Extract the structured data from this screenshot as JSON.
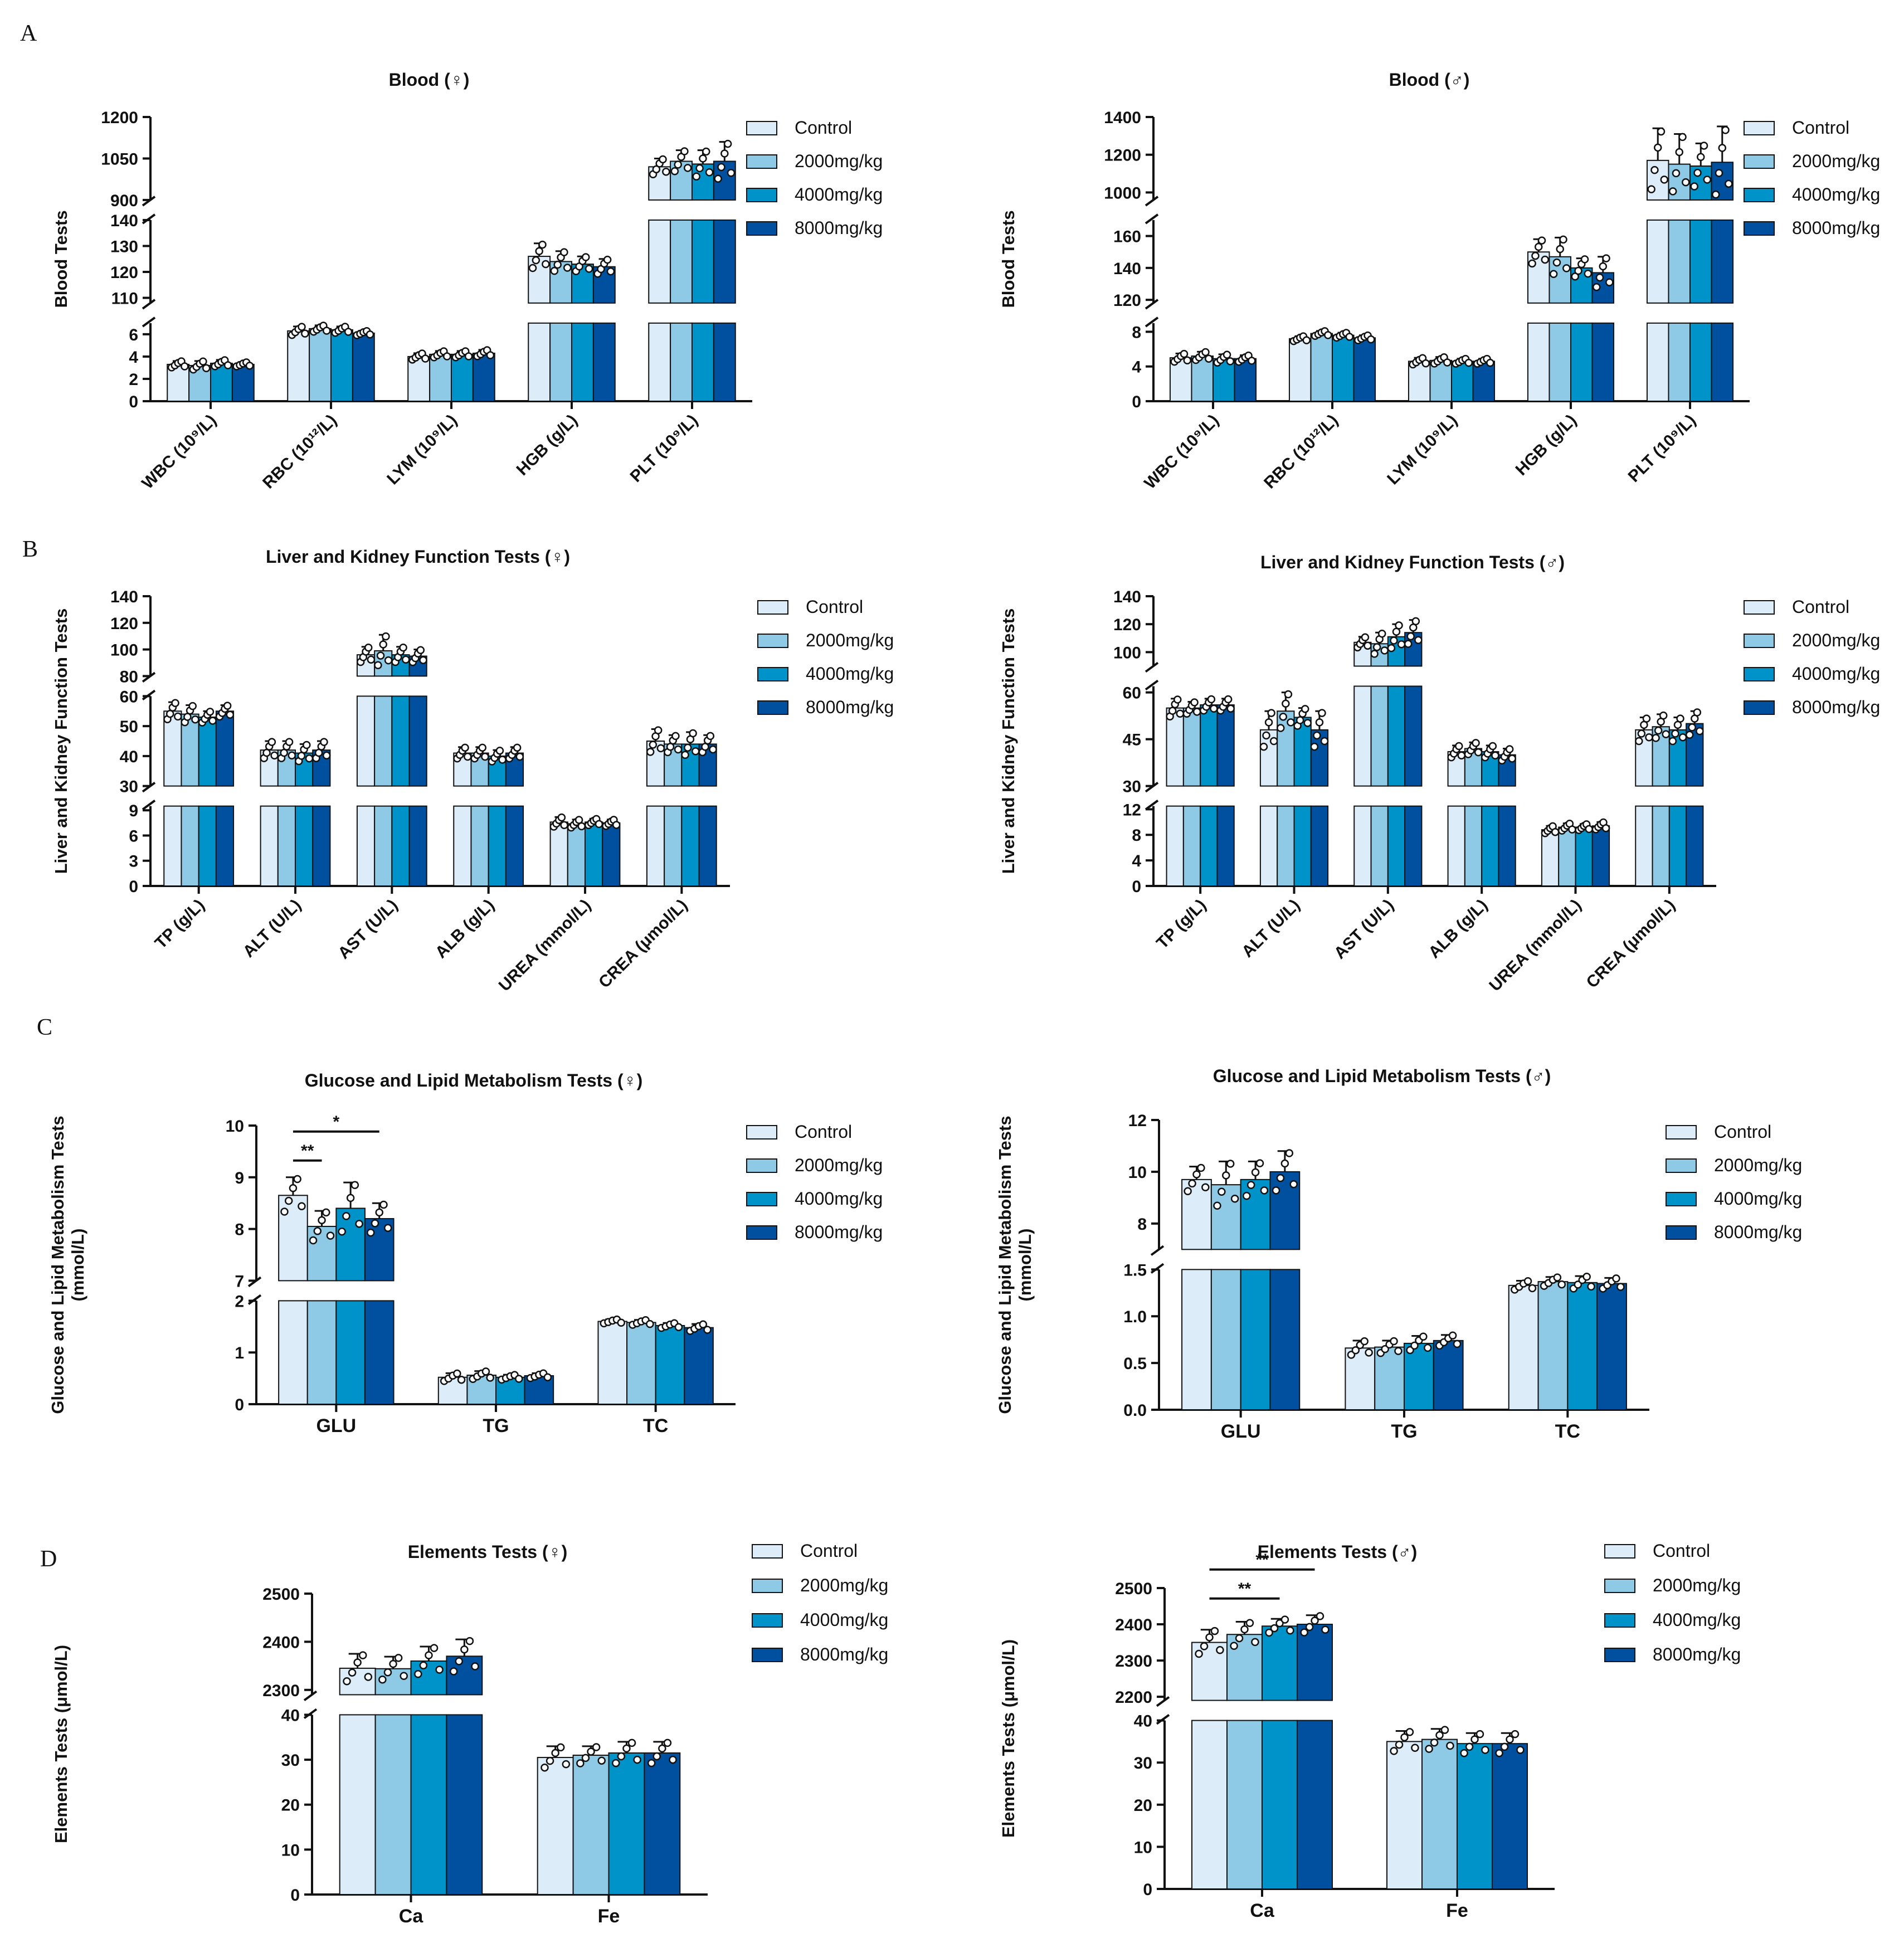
{
  "panel_letters": [
    "A",
    "B",
    "C",
    "D"
  ],
  "legend_items": [
    "Control",
    "2000mg/kg",
    "4000mg/kg",
    "8000mg/kg"
  ],
  "colors": {
    "series": [
      "#dcecf8",
      "#8ecae6",
      "#0093c9",
      "#0050a0"
    ],
    "axis": "#111111"
  },
  "chart_data": [
    {
      "type": "bar",
      "title": "Blood (♀)",
      "ylabel": "Blood Tests",
      "xlabel": "",
      "categories": [
        "WBC (10⁹/L)",
        "RBC (10¹²/L)",
        "LYM (10⁹/L)",
        "HGB (g/L)",
        "PLT (10⁹/L)"
      ],
      "axis_segments": [
        {
          "ylim": [
            0,
            7
          ],
          "ticks": [
            0,
            2,
            4,
            6
          ]
        },
        {
          "ylim": [
            108,
            140
          ],
          "ticks": [
            110,
            120,
            130,
            140
          ]
        },
        {
          "ylim": [
            900,
            1200
          ],
          "ticks": [
            900,
            1050,
            1200
          ]
        }
      ],
      "series": [
        {
          "name": "Control",
          "values": [
            3.3,
            6.3,
            4.0,
            126,
            1020
          ],
          "errors": [
            0.3,
            0.4,
            0.3,
            5,
            30
          ]
        },
        {
          "name": "2000mg/kg",
          "values": [
            3.2,
            6.5,
            4.2,
            124,
            1040
          ],
          "errors": [
            0.4,
            0.3,
            0.3,
            4,
            40
          ]
        },
        {
          "name": "4000mg/kg",
          "values": [
            3.4,
            6.4,
            4.2,
            123,
            1030
          ],
          "errors": [
            0.3,
            0.3,
            0.3,
            3,
            50
          ]
        },
        {
          "name": "8000mg/kg",
          "values": [
            3.3,
            6.1,
            4.3,
            122,
            1040
          ],
          "errors": [
            0.2,
            0.2,
            0.3,
            3,
            70
          ]
        }
      ]
    },
    {
      "type": "bar",
      "title": "Blood (♂)",
      "ylabel": "Blood Tests",
      "xlabel": "",
      "categories": [
        "WBC (10⁹/L)",
        "RBC (10¹²/L)",
        "LYM (10⁹/L)",
        "HGB (g/L)",
        "PLT (10⁹/L)"
      ],
      "axis_segments": [
        {
          "ylim": [
            0,
            9
          ],
          "ticks": [
            0,
            4,
            8
          ]
        },
        {
          "ylim": [
            118,
            170
          ],
          "ticks": [
            120,
            140,
            160
          ]
        },
        {
          "ylim": [
            960,
            1400
          ],
          "ticks": [
            1000,
            1200,
            1400
          ]
        }
      ],
      "series": [
        {
          "name": "Control",
          "values": [
            5.0,
            7.2,
            4.6,
            150,
            1170
          ],
          "errors": [
            0.5,
            0.3,
            0.4,
            8,
            170
          ]
        },
        {
          "name": "2000mg/kg",
          "values": [
            5.2,
            7.8,
            4.7,
            147,
            1150
          ],
          "errors": [
            0.5,
            0.3,
            0.4,
            12,
            160
          ]
        },
        {
          "name": "4000mg/kg",
          "values": [
            4.9,
            7.6,
            4.6,
            140,
            1140
          ],
          "errors": [
            0.5,
            0.3,
            0.3,
            6,
            120
          ]
        },
        {
          "name": "8000mg/kg",
          "values": [
            4.9,
            7.3,
            4.6,
            137,
            1160
          ],
          "errors": [
            0.4,
            0.3,
            0.3,
            10,
            190
          ]
        }
      ]
    },
    {
      "type": "bar",
      "title": "Liver and Kidney Function Tests (♀)",
      "ylabel": "Liver and Kidney Function Tests",
      "xlabel": "",
      "categories": [
        "TP (g/L)",
        "ALT (U/L)",
        "AST (U/L)",
        "ALB (g/L)",
        "UREA (mmol/L)",
        "CREA (μmol/L)"
      ],
      "axis_segments": [
        {
          "ylim": [
            0,
            9.5
          ],
          "ticks": [
            0,
            3,
            6,
            9
          ]
        },
        {
          "ylim": [
            30,
            60
          ],
          "ticks": [
            30,
            40,
            50,
            60
          ]
        },
        {
          "ylim": [
            80,
            140
          ],
          "ticks": [
            80,
            100,
            120,
            140
          ]
        }
      ],
      "series": [
        {
          "name": "Control",
          "values": [
            55,
            42,
            96,
            41,
            7.6,
            45
          ],
          "errors": [
            3,
            3,
            6,
            2,
            0.6,
            4
          ]
        },
        {
          "name": "2000mg/kg",
          "values": [
            54,
            42,
            99,
            41,
            7.4,
            44
          ],
          "errors": [
            3,
            3,
            12,
            2,
            0.5,
            3
          ]
        },
        {
          "name": "4000mg/kg",
          "values": [
            53,
            41,
            96,
            40,
            7.6,
            44
          ],
          "errors": [
            2,
            3,
            6,
            2,
            0.4,
            4
          ]
        },
        {
          "name": "8000mg/kg",
          "values": [
            55,
            42,
            95,
            41,
            7.5,
            44
          ],
          "errors": [
            2,
            3,
            5,
            2,
            0.4,
            3
          ]
        }
      ]
    },
    {
      "type": "bar",
      "title": "Liver and Kidney Function Tests (♂)",
      "ylabel": "Liver and Kidney Function Tests",
      "xlabel": "",
      "categories": [
        "TP (g/L)",
        "ALT (U/L)",
        "AST (U/L)",
        "ALB (g/L)",
        "UREA (mmol/L)",
        "CREA (μmol/L)"
      ],
      "axis_segments": [
        {
          "ylim": [
            0,
            12.5
          ],
          "ticks": [
            0,
            4,
            8,
            12
          ]
        },
        {
          "ylim": [
            30,
            62
          ],
          "ticks": [
            30,
            45,
            60
          ]
        },
        {
          "ylim": [
            90,
            140
          ],
          "ticks": [
            100,
            120,
            140
          ]
        }
      ],
      "series": [
        {
          "name": "Control",
          "values": [
            55,
            48,
            107,
            41,
            8.8,
            48
          ],
          "errors": [
            3,
            6,
            4,
            2,
            0.6,
            4
          ]
        },
        {
          "name": "2000mg/kg",
          "values": [
            55,
            54,
            106,
            42,
            9.2,
            49
          ],
          "errors": [
            2,
            6,
            8,
            2,
            0.6,
            4
          ]
        },
        {
          "name": "4000mg/kg",
          "values": [
            56,
            52,
            111,
            41,
            9.2,
            48
          ],
          "errors": [
            2,
            3,
            9,
            2,
            0.5,
            4
          ]
        },
        {
          "name": "8000mg/kg",
          "values": [
            56,
            48,
            114,
            40,
            9.4,
            50
          ],
          "errors": [
            2,
            6,
            9,
            2,
            0.6,
            4
          ]
        }
      ]
    },
    {
      "type": "bar",
      "title": "Glucose and Lipid Metabolism Tests (♀)",
      "ylabel": "Glucose and Lipid Metabolism Tests (mmol/L)",
      "xlabel": "",
      "categories": [
        "GLU",
        "TG",
        "TC"
      ],
      "axis_segments": [
        {
          "ylim": [
            0,
            2
          ],
          "ticks": [
            0,
            1,
            2
          ]
        },
        {
          "ylim": [
            7,
            10
          ],
          "ticks": [
            7,
            8,
            9,
            10
          ]
        }
      ],
      "series": [
        {
          "name": "Control",
          "values": [
            8.65,
            0.52,
            1.6
          ],
          "errors": [
            0.35,
            0.08,
            0.04
          ]
        },
        {
          "name": "2000mg/kg",
          "values": [
            8.05,
            0.56,
            1.58
          ],
          "errors": [
            0.3,
            0.08,
            0.05
          ]
        },
        {
          "name": "4000mg/kg",
          "values": [
            8.4,
            0.52,
            1.52
          ],
          "errors": [
            0.5,
            0.05,
            0.05
          ]
        },
        {
          "name": "8000mg/kg",
          "values": [
            8.2,
            0.55,
            1.48
          ],
          "errors": [
            0.3,
            0.05,
            0.07
          ]
        }
      ],
      "annotations": [
        {
          "label": "**",
          "from_series": 0,
          "to_series": 1,
          "category": 0
        },
        {
          "label": "*",
          "from_series": 0,
          "to_series": 3,
          "category": 0
        }
      ]
    },
    {
      "type": "bar",
      "title": "Glucose and Lipid Metabolism Tests (♂)",
      "ylabel": "Glucose and Lipid Metabolism Tests (mmol/L)",
      "xlabel": "",
      "categories": [
        "GLU",
        "TG",
        "TC"
      ],
      "axis_segments": [
        {
          "ylim": [
            0,
            1.5
          ],
          "ticks": [
            0.0,
            0.5,
            1.0,
            1.5
          ],
          "tick_labels": [
            "0.0",
            "0.5",
            "1.0",
            "1.5"
          ]
        },
        {
          "ylim": [
            7,
            12
          ],
          "ticks": [
            8,
            10,
            12
          ]
        }
      ],
      "series": [
        {
          "name": "Control",
          "values": [
            9.7,
            0.66,
            1.33
          ],
          "errors": [
            0.5,
            0.08,
            0.05
          ]
        },
        {
          "name": "2000mg/kg",
          "values": [
            9.5,
            0.67,
            1.37
          ],
          "errors": [
            0.9,
            0.07,
            0.05
          ]
        },
        {
          "name": "4000mg/kg",
          "values": [
            9.7,
            0.71,
            1.36
          ],
          "errors": [
            0.7,
            0.08,
            0.07
          ]
        },
        {
          "name": "8000mg/kg",
          "values": [
            10.0,
            0.74,
            1.35
          ],
          "errors": [
            0.8,
            0.06,
            0.06
          ]
        }
      ]
    },
    {
      "type": "bar",
      "title": "Elements Tests (♀)",
      "ylabel": "Elements Tests (μmol/L)",
      "xlabel": "",
      "categories": [
        "Ca",
        "Fe"
      ],
      "axis_segments": [
        {
          "ylim": [
            0,
            40
          ],
          "ticks": [
            0,
            10,
            20,
            30,
            40
          ]
        },
        {
          "ylim": [
            2290,
            2500
          ],
          "ticks": [
            2300,
            2400,
            2500
          ]
        }
      ],
      "series": [
        {
          "name": "Control",
          "values": [
            2345,
            30.5
          ],
          "errors": [
            30,
            2.5
          ]
        },
        {
          "name": "2000mg/kg",
          "values": [
            2344,
            31
          ],
          "errors": [
            25,
            2
          ]
        },
        {
          "name": "4000mg/kg",
          "values": [
            2360,
            31.5
          ],
          "errors": [
            30,
            2.5
          ]
        },
        {
          "name": "8000mg/kg",
          "values": [
            2370,
            31.5
          ],
          "errors": [
            35,
            2.5
          ]
        }
      ]
    },
    {
      "type": "bar",
      "title": "Elements Tests (♂)",
      "ylabel": "Elements Tests (μmol/L)",
      "xlabel": "",
      "categories": [
        "Ca",
        "Fe"
      ],
      "axis_segments": [
        {
          "ylim": [
            0,
            40
          ],
          "ticks": [
            0,
            10,
            20,
            30,
            40
          ]
        },
        {
          "ylim": [
            2190,
            2500
          ],
          "ticks": [
            2200,
            2300,
            2400,
            2500
          ]
        }
      ],
      "series": [
        {
          "name": "Control",
          "values": [
            2350,
            35
          ],
          "errors": [
            35,
            2.5
          ]
        },
        {
          "name": "2000mg/kg",
          "values": [
            2372,
            35.5
          ],
          "errors": [
            35,
            2.5
          ]
        },
        {
          "name": "4000mg/kg",
          "values": [
            2395,
            34.5
          ],
          "errors": [
            20,
            2.5
          ]
        },
        {
          "name": "8000mg/kg",
          "values": [
            2400,
            34.5
          ],
          "errors": [
            25,
            2.5
          ]
        }
      ],
      "annotations": [
        {
          "label": "**",
          "from_series": 0,
          "to_series": 2,
          "category": 0
        },
        {
          "label": "**",
          "from_series": 0,
          "to_series": 3,
          "category": 0
        }
      ]
    }
  ]
}
